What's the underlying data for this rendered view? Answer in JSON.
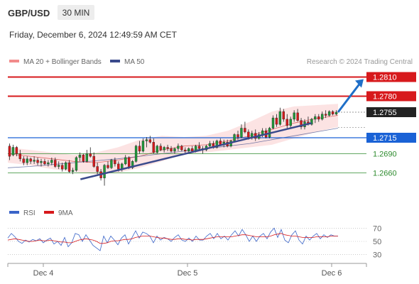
{
  "header": {
    "pair": "GBP/USD",
    "timeframe": "30 MIN",
    "datetime": "Friday, December 6, 2024 12:49:59 AM CET"
  },
  "legend": {
    "bollinger_label": "MA 20 + Bollinger Bands",
    "ma50_label": "MA 50",
    "credit": "Research © 2024 Trading Central"
  },
  "rsi_legend": {
    "rsi_label": "RSI",
    "ma_label": "9MA"
  },
  "colors": {
    "resistance": "#d7191c",
    "support": "#1a62d6",
    "level_green": "#2e8b2e",
    "candle_up": "#1f9a3a",
    "candle_down": "#d7191c",
    "trendline": "#3a4a8c",
    "arrow": "#1f6fc8",
    "ma50": "#3a4a8c",
    "rsi_line": "#3a64c8",
    "rsi_ma": "#d7191c",
    "band_fill": "#fbdcdc"
  },
  "chart_data": {
    "type": "candlestick",
    "title": "GBP/USD",
    "timeframe": "30 MIN",
    "x_labels": [
      "Dec 4",
      "Dec 5",
      "Dec 6"
    ],
    "price_axis_min": 1.2625,
    "price_axis_max": 1.2825,
    "levels": [
      {
        "label": "1.2810",
        "value": 1.281,
        "kind": "resistance",
        "style": "solid"
      },
      {
        "label": "1.2780",
        "value": 1.278,
        "kind": "resistance",
        "style": "solid"
      },
      {
        "label": "1.2755",
        "value": 1.2755,
        "kind": "last-price",
        "style": "dotted"
      },
      {
        "label": "1.2715",
        "value": 1.2715,
        "kind": "pivot",
        "style": "solid"
      },
      {
        "label": "1.2690",
        "value": 1.269,
        "kind": "support",
        "style": "solid"
      },
      {
        "label": "1.2660",
        "value": 1.266,
        "kind": "support",
        "style": "solid"
      }
    ],
    "trendline": {
      "from": {
        "bar": 0.22,
        "value": 1.265
      },
      "to": {
        "bar": 0.92,
        "value": 1.2738
      }
    },
    "target_arrow": {
      "from_value": 1.2755,
      "to_value": 1.281
    },
    "candles": [
      [
        1.2702,
        1.2706,
        1.268,
        1.2686
      ],
      [
        1.2688,
        1.2704,
        1.2686,
        1.27
      ],
      [
        1.27,
        1.2702,
        1.2686,
        1.269
      ],
      [
        1.269,
        1.2696,
        1.2678,
        1.2682
      ],
      [
        1.2682,
        1.2686,
        1.2672,
        1.2676
      ],
      [
        1.2676,
        1.2686,
        1.2672,
        1.2682
      ],
      [
        1.2682,
        1.2684,
        1.2674,
        1.2678
      ],
      [
        1.2678,
        1.2686,
        1.2674,
        1.268
      ],
      [
        1.268,
        1.2684,
        1.2672,
        1.2676
      ],
      [
        1.2676,
        1.2682,
        1.267,
        1.2678
      ],
      [
        1.2678,
        1.2682,
        1.2672,
        1.2674
      ],
      [
        1.2674,
        1.268,
        1.267,
        1.2676
      ],
      [
        1.2676,
        1.2684,
        1.2672,
        1.268
      ],
      [
        1.268,
        1.2684,
        1.2668,
        1.267
      ],
      [
        1.267,
        1.2678,
        1.2666,
        1.2672
      ],
      [
        1.2672,
        1.2676,
        1.2662,
        1.2666
      ],
      [
        1.2666,
        1.2678,
        1.2664,
        1.2676
      ],
      [
        1.2676,
        1.268,
        1.266,
        1.2662
      ],
      [
        1.2662,
        1.2668,
        1.2658,
        1.2664
      ],
      [
        1.2664,
        1.2686,
        1.2662,
        1.2684
      ],
      [
        1.2684,
        1.2692,
        1.2678,
        1.2688
      ],
      [
        1.2688,
        1.269,
        1.2676,
        1.2678
      ],
      [
        1.2678,
        1.2696,
        1.2676,
        1.269
      ],
      [
        1.269,
        1.27,
        1.2684,
        1.2686
      ],
      [
        1.2686,
        1.2692,
        1.2668,
        1.267
      ],
      [
        1.267,
        1.2676,
        1.2658,
        1.2662
      ],
      [
        1.2662,
        1.2666,
        1.2648,
        1.2652
      ],
      [
        1.2652,
        1.2674,
        1.264,
        1.2672
      ],
      [
        1.2672,
        1.2678,
        1.2666,
        1.2668
      ],
      [
        1.2668,
        1.2682,
        1.2666,
        1.268
      ],
      [
        1.268,
        1.2684,
        1.267,
        1.2674
      ],
      [
        1.2674,
        1.2678,
        1.2662,
        1.2666
      ],
      [
        1.2666,
        1.2676,
        1.2662,
        1.2674
      ],
      [
        1.2674,
        1.2688,
        1.2672,
        1.2684
      ],
      [
        1.2684,
        1.2686,
        1.2666,
        1.2668
      ],
      [
        1.2668,
        1.268,
        1.2666,
        1.2678
      ],
      [
        1.2678,
        1.2704,
        1.2676,
        1.2702
      ],
      [
        1.2702,
        1.271,
        1.269,
        1.2694
      ],
      [
        1.2694,
        1.2714,
        1.2692,
        1.271
      ],
      [
        1.271,
        1.2716,
        1.27,
        1.2712
      ],
      [
        1.2712,
        1.2718,
        1.2706,
        1.2708
      ],
      [
        1.2708,
        1.2714,
        1.269,
        1.2692
      ],
      [
        1.2692,
        1.2704,
        1.269,
        1.2702
      ],
      [
        1.2702,
        1.2706,
        1.2694,
        1.2696
      ],
      [
        1.2696,
        1.2702,
        1.2692,
        1.27
      ],
      [
        1.27,
        1.2704,
        1.2694,
        1.2698
      ],
      [
        1.2698,
        1.2702,
        1.2692,
        1.2694
      ],
      [
        1.2694,
        1.27,
        1.269,
        1.2698
      ],
      [
        1.2698,
        1.2706,
        1.2694,
        1.2702
      ],
      [
        1.2702,
        1.2704,
        1.2694,
        1.2696
      ],
      [
        1.2696,
        1.27,
        1.269,
        1.2694
      ],
      [
        1.2694,
        1.27,
        1.269,
        1.2698
      ],
      [
        1.2698,
        1.2702,
        1.2692,
        1.2694
      ],
      [
        1.2694,
        1.2704,
        1.2692,
        1.2702
      ],
      [
        1.2702,
        1.2708,
        1.2696,
        1.2698
      ],
      [
        1.2698,
        1.2702,
        1.269,
        1.2696
      ],
      [
        1.2696,
        1.2704,
        1.2694,
        1.2702
      ],
      [
        1.2702,
        1.271,
        1.2698,
        1.2706
      ],
      [
        1.2706,
        1.271,
        1.2698,
        1.27
      ],
      [
        1.27,
        1.2712,
        1.2698,
        1.271
      ],
      [
        1.271,
        1.2714,
        1.2702,
        1.2704
      ],
      [
        1.2704,
        1.2712,
        1.27,
        1.2708
      ],
      [
        1.2708,
        1.2712,
        1.27,
        1.2702
      ],
      [
        1.2702,
        1.2712,
        1.27,
        1.271
      ],
      [
        1.271,
        1.2722,
        1.2708,
        1.272
      ],
      [
        1.272,
        1.2726,
        1.2712,
        1.2716
      ],
      [
        1.2716,
        1.2736,
        1.2714,
        1.273
      ],
      [
        1.273,
        1.274,
        1.2722,
        1.2724
      ],
      [
        1.2724,
        1.2728,
        1.2712,
        1.2716
      ],
      [
        1.2716,
        1.2726,
        1.2712,
        1.2722
      ],
      [
        1.2722,
        1.2728,
        1.271,
        1.2714
      ],
      [
        1.2714,
        1.2724,
        1.2712,
        1.272
      ],
      [
        1.272,
        1.273,
        1.2716,
        1.2726
      ],
      [
        1.2726,
        1.273,
        1.2714,
        1.2716
      ],
      [
        1.2716,
        1.2732,
        1.2714,
        1.273
      ],
      [
        1.273,
        1.275,
        1.2728,
        1.2746
      ],
      [
        1.2746,
        1.2752,
        1.2732,
        1.2736
      ],
      [
        1.2736,
        1.2762,
        1.2734,
        1.2756
      ],
      [
        1.2756,
        1.276,
        1.274,
        1.2744
      ],
      [
        1.2744,
        1.2752,
        1.273,
        1.2734
      ],
      [
        1.2734,
        1.2748,
        1.273,
        1.2744
      ],
      [
        1.2744,
        1.2758,
        1.274,
        1.2754
      ],
      [
        1.2754,
        1.276,
        1.274,
        1.2742
      ],
      [
        1.2742,
        1.2746,
        1.2728,
        1.2732
      ],
      [
        1.2732,
        1.2744,
        1.2728,
        1.274
      ],
      [
        1.274,
        1.2748,
        1.2734,
        1.2736
      ],
      [
        1.2736,
        1.2746,
        1.2734,
        1.2744
      ],
      [
        1.2744,
        1.2752,
        1.2738,
        1.2748
      ],
      [
        1.2748,
        1.2752,
        1.274,
        1.2744
      ],
      [
        1.2744,
        1.2756,
        1.2742,
        1.2752
      ],
      [
        1.2752,
        1.2758,
        1.2746,
        1.275
      ],
      [
        1.275,
        1.2758,
        1.2748,
        1.2756
      ],
      [
        1.2756,
        1.2758,
        1.275,
        1.2752
      ],
      [
        1.2752,
        1.2758,
        1.275,
        1.2755
      ]
    ],
    "ma50": [
      1.2668,
      1.267,
      1.2673,
      1.2676,
      1.2679,
      1.2682,
      1.2686,
      1.269,
      1.2694,
      1.2698,
      1.2702,
      1.2706,
      1.2712,
      1.2718,
      1.2724,
      1.273
    ],
    "bollinger": {
      "mid": [
        1.269,
        1.2686,
        1.2682,
        1.2678,
        1.2676,
        1.268,
        1.2686,
        1.2696,
        1.2702,
        1.2704,
        1.271,
        1.2718,
        1.2728,
        1.2738,
        1.2745,
        1.275
      ],
      "upper": [
        1.27,
        1.2696,
        1.2692,
        1.2688,
        1.2692,
        1.27,
        1.2712,
        1.2718,
        1.2716,
        1.2718,
        1.2726,
        1.274,
        1.2756,
        1.2764,
        1.2766,
        1.2768
      ],
      "lower": [
        1.2676,
        1.2672,
        1.2666,
        1.2662,
        1.2658,
        1.266,
        1.2668,
        1.2678,
        1.269,
        1.2692,
        1.2696,
        1.27,
        1.2704,
        1.2714,
        1.2724,
        1.2732
      ]
    },
    "rsi_axis": {
      "min": 20,
      "max": 80,
      "ticks": [
        "70",
        "50",
        "30"
      ],
      "tick_values": [
        70,
        50,
        30
      ]
    },
    "rsi": [
      55,
      62,
      57,
      50,
      47,
      52,
      49,
      53,
      51,
      54,
      48,
      52,
      55,
      46,
      50,
      44,
      56,
      42,
      48,
      62,
      60,
      50,
      60,
      52,
      44,
      40,
      36,
      58,
      48,
      58,
      52,
      45,
      55,
      60,
      46,
      56,
      66,
      55,
      64,
      62,
      58,
      48,
      58,
      52,
      56,
      54,
      50,
      56,
      60,
      52,
      50,
      55,
      50,
      58,
      52,
      52,
      58,
      62,
      54,
      62,
      54,
      58,
      52,
      60,
      66,
      58,
      68,
      60,
      50,
      58,
      50,
      58,
      62,
      54,
      64,
      70,
      56,
      68,
      52,
      48,
      60,
      66,
      52,
      46,
      58,
      52,
      58,
      62,
      54,
      60,
      56,
      60,
      58,
      58
    ],
    "rsi_ma": [
      52,
      53,
      54,
      53,
      52,
      51,
      50,
      50,
      51,
      52,
      51,
      51,
      52,
      51,
      50,
      49,
      49,
      48,
      48,
      50,
      52,
      53,
      54,
      53,
      52,
      50,
      47,
      47,
      48,
      50,
      51,
      51,
      52,
      53,
      53,
      54,
      56,
      57,
      58,
      58,
      58,
      57,
      56,
      55,
      55,
      54,
      53,
      53,
      54,
      54,
      53,
      53,
      52,
      53,
      53,
      53,
      54,
      55,
      56,
      57,
      57,
      57,
      57,
      57,
      58,
      59,
      60,
      60,
      59,
      58,
      57,
      57,
      57,
      57,
      58,
      60,
      61,
      62,
      60,
      59,
      58,
      58,
      57,
      56,
      56,
      56,
      56,
      57,
      57,
      57,
      57,
      58,
      58,
      58
    ]
  }
}
